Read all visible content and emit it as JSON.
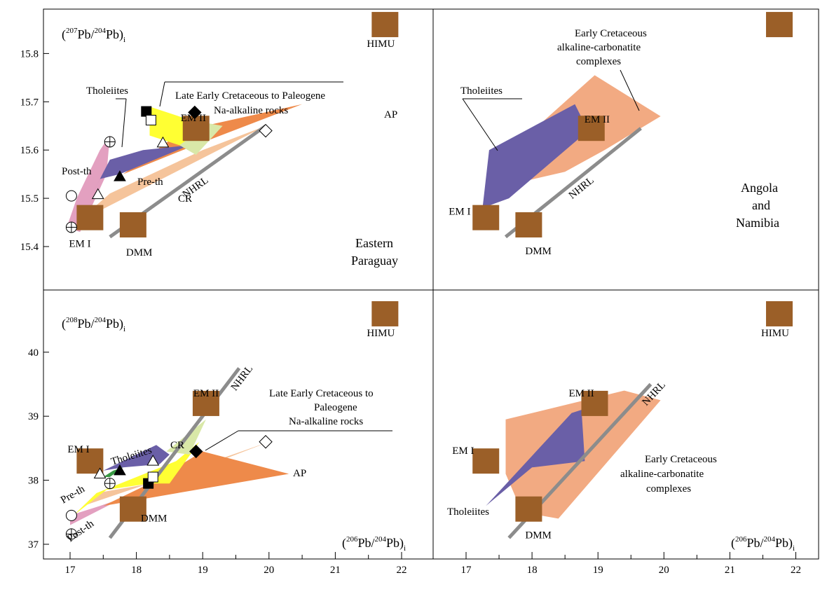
{
  "colors": {
    "endmember": "#9B5F28",
    "nhrl": "#8C8C8C",
    "tholeiites": "#6A5FA7",
    "post_th": "#E3A0C0",
    "pre_th": "#F5C49B",
    "ap": "#EE8A4A",
    "na_alkaline": "#FFFF33",
    "cr": "#D9E8A8",
    "ecac": "#F2AA82",
    "green": "#3A9A45"
  },
  "chart_data": [
    {
      "panel": "top-left",
      "type": "scatter",
      "region_label": [
        "Eastern",
        "Paraguay"
      ],
      "ylabel": {
        "pre": "(",
        "sup1": "207",
        "mid": "Pb/",
        "sup2": "204",
        "post": "Pb)",
        "sub": "i"
      },
      "xlim": [
        16.5,
        22.4
      ],
      "ylim": [
        15.31,
        15.99
      ],
      "yticks": [
        "15.4",
        "15.5",
        "15.6",
        "15.7",
        "15.8"
      ],
      "yticks_values": [
        15.4,
        15.5,
        15.6,
        15.7,
        15.8
      ],
      "endmembers": [
        {
          "name": "HIMU",
          "x": 21.75,
          "y": 15.86
        },
        {
          "name": "EM II",
          "x": 18.9,
          "y": 15.645
        },
        {
          "name": "EM I",
          "x": 17.3,
          "y": 15.46
        },
        {
          "name": "DMM",
          "x": 17.95,
          "y": 15.445
        }
      ],
      "nhrl": {
        "label": "NHRL",
        "x": [
          17.6,
          19.95
        ],
        "y": [
          15.42,
          15.65
        ]
      },
      "fields": [
        {
          "name": "Post-th",
          "color_key": "post_th",
          "points": [
            [
              16.95,
              15.44
            ],
            [
              17.15,
              15.43
            ],
            [
              17.55,
              15.55
            ],
            [
              17.6,
              15.63
            ],
            [
              17.45,
              15.6
            ],
            [
              17.1,
              15.5
            ]
          ]
        },
        {
          "name": "Pre-th",
          "color_key": "pre_th",
          "points": [
            [
              17.1,
              15.45
            ],
            [
              19.95,
              15.65
            ],
            [
              19.0,
              15.6
            ],
            [
              17.6,
              15.51
            ]
          ]
        },
        {
          "name": "AP",
          "color_key": "ap",
          "points": [
            [
              17.8,
              15.55
            ],
            [
              18.7,
              15.64
            ],
            [
              20.5,
              15.695
            ],
            [
              18.7,
              15.6
            ]
          ]
        },
        {
          "name": "Tholeiites",
          "color_key": "tholeiites",
          "points": [
            [
              17.3,
              15.5
            ],
            [
              17.6,
              15.58
            ],
            [
              18.1,
              15.6
            ],
            [
              18.8,
              15.61
            ],
            [
              17.75,
              15.55
            ],
            [
              17.45,
              15.54
            ]
          ]
        },
        {
          "name": "Late Early Cretaceous to Paleogene Na-alkaline rocks",
          "color_key": "na_alkaline",
          "points": [
            [
              18.2,
              15.69
            ],
            [
              18.75,
              15.665
            ],
            [
              18.9,
              15.62
            ],
            [
              18.65,
              15.61
            ],
            [
              18.2,
              15.63
            ]
          ]
        },
        {
          "name": "CR",
          "color_key": "cr",
          "points": [
            [
              18.65,
              15.61
            ],
            [
              19.1,
              15.655
            ],
            [
              19.3,
              15.65
            ],
            [
              18.9,
              15.59
            ]
          ]
        }
      ],
      "markers": [
        {
          "symbol": "open-circle",
          "x": 17.02,
          "y": 15.505
        },
        {
          "symbol": "crossed-circle",
          "x": 17.6,
          "y": 15.617
        },
        {
          "symbol": "crossed-circle",
          "x": 17.02,
          "y": 15.44
        },
        {
          "symbol": "open-triangle",
          "x": 17.42,
          "y": 15.508
        },
        {
          "symbol": "filled-triangle",
          "x": 17.75,
          "y": 15.545
        },
        {
          "symbol": "open-triangle",
          "x": 18.4,
          "y": 15.615
        },
        {
          "symbol": "filled-square",
          "x": 18.15,
          "y": 15.68
        },
        {
          "symbol": "open-square",
          "x": 18.22,
          "y": 15.662
        },
        {
          "symbol": "filled-diamond",
          "x": 18.88,
          "y": 15.678
        },
        {
          "symbol": "open-diamond",
          "x": 19.95,
          "y": 15.64
        }
      ],
      "annotations": [
        {
          "text": "Tholeiites"
        },
        {
          "text": "Late Early Cretaceous to Paleogene"
        },
        {
          "text": "Na-alkaline rocks"
        },
        {
          "text": "CR"
        },
        {
          "text": "AP"
        },
        {
          "text": "Post-th"
        },
        {
          "text": "Pre-th"
        }
      ]
    },
    {
      "panel": "top-right",
      "type": "scatter",
      "region_label": [
        "Angola",
        "and",
        "Namibia"
      ],
      "xlim": [
        16.5,
        22.4
      ],
      "ylim": [
        15.31,
        15.99
      ],
      "endmembers": [
        {
          "name": "",
          "x": 21.75,
          "y": 15.86
        },
        {
          "name": "EM II",
          "x": 18.9,
          "y": 15.645
        },
        {
          "name": "EM I",
          "x": 17.3,
          "y": 15.46
        },
        {
          "name": "DMM",
          "x": 17.95,
          "y": 15.445
        }
      ],
      "nhrl": {
        "label": "NHRL",
        "x": [
          17.6,
          19.65
        ],
        "y": [
          15.42,
          15.645
        ]
      },
      "fields": [
        {
          "name": "Early Cretaceous alkaline-carbonatite complexes",
          "color_key": "ecac",
          "points": [
            [
              17.6,
              15.59
            ],
            [
              18.95,
              15.755
            ],
            [
              19.95,
              15.67
            ],
            [
              19.1,
              15.6
            ],
            [
              18.5,
              15.555
            ],
            [
              17.55,
              15.525
            ]
          ]
        },
        {
          "name": "Tholeiites",
          "color_key": "tholeiites",
          "points": [
            [
              17.25,
              15.48
            ],
            [
              17.35,
              15.6
            ],
            [
              18.65,
              15.695
            ],
            [
              18.85,
              15.64
            ],
            [
              17.65,
              15.5
            ]
          ]
        }
      ],
      "annotations": [
        {
          "text": "Early Cretaceous"
        },
        {
          "text": "alkaline-carbonatite"
        },
        {
          "text": "complexes"
        },
        {
          "text": "Tholeiites"
        }
      ]
    },
    {
      "panel": "bottom-left",
      "type": "scatter",
      "ylabel": {
        "pre": "(",
        "sup1": "208",
        "mid": "Pb/",
        "sup2": "204",
        "post": "Pb)",
        "sub": "i"
      },
      "xlabel": {
        "pre": "(",
        "sup1": "206",
        "mid": "Pb/",
        "sup2": "204",
        "post": "Pb)",
        "sub": "i"
      },
      "xlim": [
        16.5,
        22.4
      ],
      "ylim": [
        36.5,
        41.0
      ],
      "xticks": [
        "17",
        "18",
        "19",
        "20",
        "21",
        "22"
      ],
      "xticks_values": [
        17,
        18,
        19,
        20,
        21,
        22
      ],
      "yticks": [
        "37",
        "38",
        "39",
        "40"
      ],
      "yticks_values": [
        37,
        38,
        39,
        40
      ],
      "endmembers": [
        {
          "name": "HIMU",
          "x": 21.75,
          "y": 40.6
        },
        {
          "name": "EM II",
          "x": 19.05,
          "y": 39.2
        },
        {
          "name": "EM I",
          "x": 17.3,
          "y": 38.3
        },
        {
          "name": "DMM",
          "x": 17.95,
          "y": 37.55
        }
      ],
      "nhrl": {
        "label": "NHRL",
        "x": [
          17.6,
          19.55
        ],
        "y": [
          37.1,
          39.75
        ]
      },
      "fields": [
        {
          "name": "Post-th",
          "color_key": "post_th",
          "points": [
            [
              17.0,
              37.3
            ],
            [
              17.85,
              37.75
            ],
            [
              18.15,
              37.85
            ],
            [
              17.45,
              37.6
            ],
            [
              17.0,
              37.45
            ]
          ]
        },
        {
          "name": "Pre-th",
          "color_key": "pre_th",
          "points": [
            [
              17.2,
              37.6
            ],
            [
              18.9,
              38.2
            ],
            [
              20.0,
              38.6
            ],
            [
              18.5,
              38.0
            ],
            [
              17.4,
              37.8
            ]
          ]
        },
        {
          "name": "AP",
          "color_key": "ap",
          "points": [
            [
              17.5,
              37.6
            ],
            [
              20.3,
              38.1
            ],
            [
              19.0,
              38.45
            ],
            [
              18.2,
              37.95
            ]
          ]
        },
        {
          "name": "Pre-th yellow",
          "color_key": "na_alkaline",
          "points": [
            [
              17.05,
              37.45
            ],
            [
              17.55,
              37.85
            ],
            [
              18.2,
              37.95
            ],
            [
              18.5,
              37.95
            ],
            [
              18.95,
              38.6
            ],
            [
              18.6,
              38.3
            ],
            [
              17.4,
              37.8
            ]
          ]
        },
        {
          "name": "Tholeiites",
          "color_key": "tholeiites",
          "points": [
            [
              17.5,
              38.15
            ],
            [
              18.3,
              38.55
            ],
            [
              18.5,
              38.4
            ],
            [
              18.35,
              38.25
            ],
            [
              17.8,
              38.2
            ]
          ]
        },
        {
          "name": "green",
          "color_key": "green",
          "points": [
            [
              17.5,
              38.05
            ],
            [
              17.65,
              38.15
            ],
            [
              17.8,
              38.2
            ],
            [
              17.6,
              38.05
            ]
          ]
        },
        {
          "name": "CR",
          "color_key": "cr",
          "points": [
            [
              18.45,
              38.45
            ],
            [
              19.05,
              38.95
            ],
            [
              18.8,
              38.4
            ]
          ]
        }
      ],
      "markers": [
        {
          "symbol": "open-circle",
          "x": 17.02,
          "y": 37.45
        },
        {
          "symbol": "crossed-circle",
          "x": 17.6,
          "y": 37.95
        },
        {
          "symbol": "crossed-circle",
          "x": 17.02,
          "y": 37.16
        },
        {
          "symbol": "open-triangle",
          "x": 17.45,
          "y": 38.1
        },
        {
          "symbol": "filled-triangle",
          "x": 17.75,
          "y": 38.15
        },
        {
          "symbol": "open-triangle",
          "x": 18.25,
          "y": 38.3
        },
        {
          "symbol": "filled-square",
          "x": 18.18,
          "y": 37.95
        },
        {
          "symbol": "open-square",
          "x": 18.25,
          "y": 38.05
        },
        {
          "symbol": "filled-diamond",
          "x": 18.9,
          "y": 38.45
        },
        {
          "symbol": "open-diamond",
          "x": 19.95,
          "y": 38.6
        }
      ],
      "annotations": [
        {
          "text": "Tholeiites"
        },
        {
          "text": "Late Early Cretaceous to"
        },
        {
          "text": "Paleogene"
        },
        {
          "text": "Na-alkaline rocks"
        },
        {
          "text": "CR"
        },
        {
          "text": "AP"
        },
        {
          "text": "Pre-th"
        },
        {
          "text": "Post-th"
        }
      ]
    },
    {
      "panel": "bottom-right",
      "type": "scatter",
      "xlabel": {
        "pre": "(",
        "sup1": "206",
        "mid": "Pb/",
        "sup2": "204",
        "post": "Pb)",
        "sub": "i"
      },
      "xlim": [
        16.5,
        22.4
      ],
      "ylim": [
        36.5,
        41.0
      ],
      "xticks": [
        "17",
        "18",
        "19",
        "20",
        "21",
        "22"
      ],
      "xticks_values": [
        17,
        18,
        19,
        20,
        21,
        22
      ],
      "endmembers": [
        {
          "name": "HIMU",
          "x": 21.75,
          "y": 40.6
        },
        {
          "name": "EM II",
          "x": 18.95,
          "y": 39.2
        },
        {
          "name": "EM I",
          "x": 17.3,
          "y": 38.3
        },
        {
          "name": "DMM",
          "x": 17.95,
          "y": 37.55
        }
      ],
      "nhrl": {
        "label": "NHRL",
        "x": [
          17.65,
          19.8
        ],
        "y": [
          37.1,
          39.5
        ]
      },
      "fields": [
        {
          "name": "Early Cretaceous alkaline-carbonatite complexes",
          "color_key": "ecac",
          "points": [
            [
              17.6,
              38.95
            ],
            [
              19.4,
              39.4
            ],
            [
              19.95,
              39.25
            ],
            [
              18.4,
              37.4
            ],
            [
              17.85,
              37.5
            ],
            [
              17.6,
              38.1
            ]
          ]
        },
        {
          "name": "Tholeiites",
          "color_key": "tholeiites",
          "points": [
            [
              17.3,
              37.6
            ],
            [
              18.6,
              39.05
            ],
            [
              18.75,
              39.1
            ],
            [
              18.8,
              38.3
            ],
            [
              18.0,
              38.2
            ]
          ]
        }
      ],
      "annotations": [
        {
          "text": "Early Cretaceous"
        },
        {
          "text": "alkaline-carbonatite"
        },
        {
          "text": "complexes"
        },
        {
          "text": "Tholeiites"
        }
      ]
    }
  ]
}
